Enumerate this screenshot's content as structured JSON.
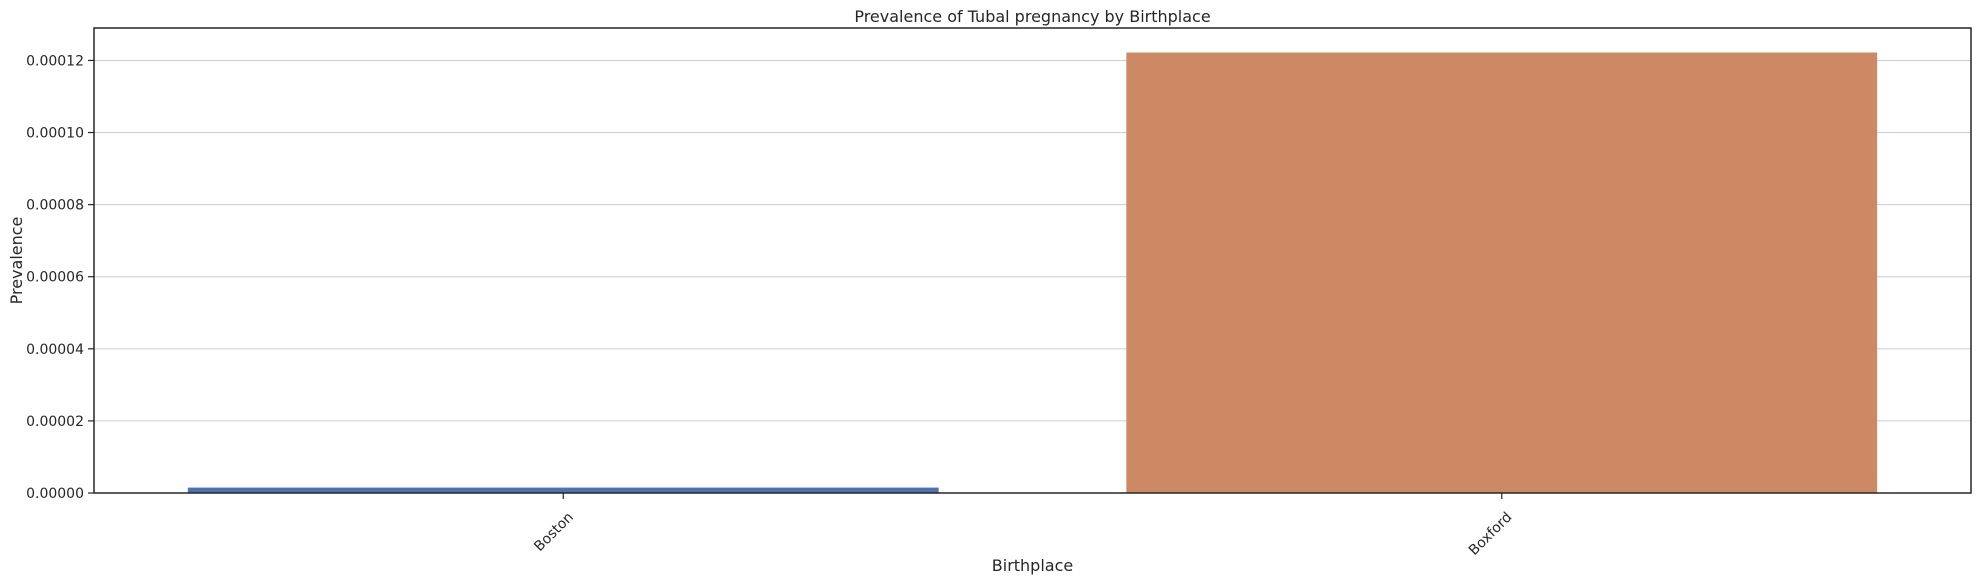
{
  "chart_data": {
    "type": "bar",
    "title": "Prevalence of Tubal pregnancy by Birthplace",
    "xlabel": "Birthplace",
    "ylabel": "Prevalence",
    "categories": [
      "Boston",
      "Boxford"
    ],
    "values": [
      1.5e-06,
      0.0001222
    ],
    "colors": [
      "#4c72b0",
      "#cc8963"
    ],
    "ylim": [
      0,
      0.000129
    ],
    "yticks": [
      0,
      2e-05,
      4e-05,
      6e-05,
      8e-05,
      0.0001,
      0.00012
    ],
    "ytick_labels": [
      "0.00000",
      "0.00002",
      "0.00004",
      "0.00006",
      "0.00008",
      "0.00010",
      "0.00012"
    ],
    "grid": "horizontal",
    "legend": "none",
    "xtick_rotation": "45"
  }
}
